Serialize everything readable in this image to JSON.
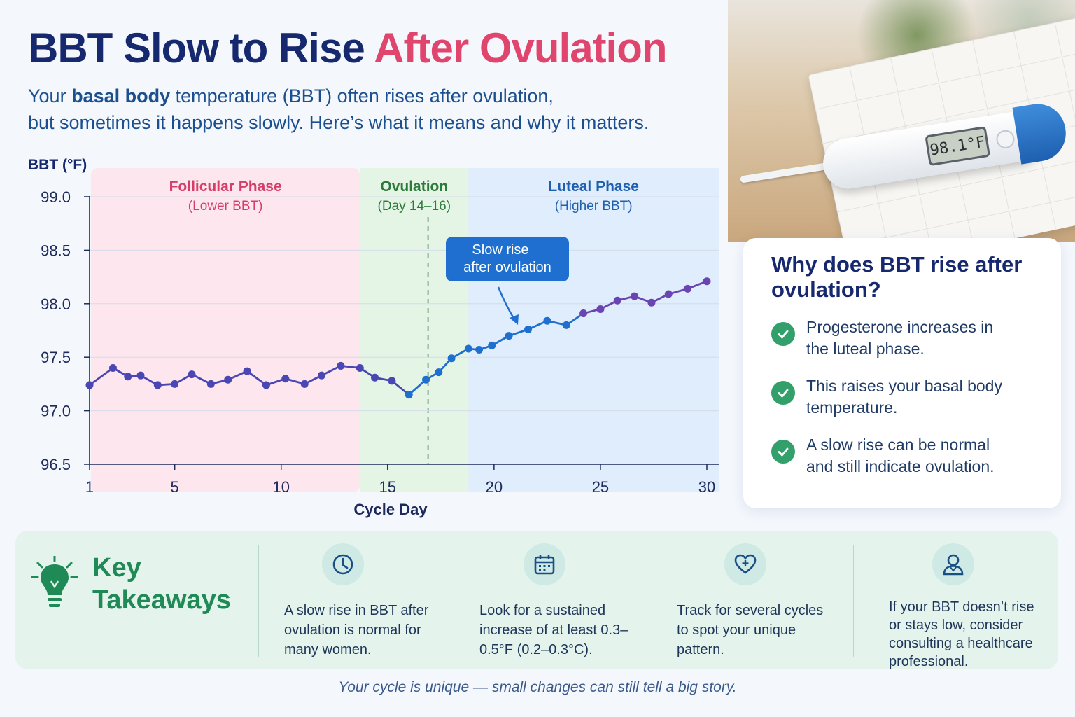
{
  "title": {
    "main": "BBT Slow to Rise",
    "accent": "After Ovulation"
  },
  "subtitle": {
    "part1": "Your ",
    "bold": "basal body",
    "part2": " temperature (BBT) often rises after ovulation,",
    "line2": "but sometimes it happens slowly. Here’s what it means and why it matters."
  },
  "thermometer": {
    "display": "98.1°F",
    "icon": "digital-thermometer"
  },
  "chart_data": {
    "type": "line",
    "ylabel": "BBT (°F)",
    "xlabel": "Cycle Day",
    "ylim": [
      96.5,
      99.0
    ],
    "xlim": [
      1,
      30
    ],
    "yticks": [
      "99.0",
      "98.5",
      "98.0",
      "97.5",
      "97.0",
      "96.5"
    ],
    "xticks": [
      "1",
      "5",
      "10",
      "15",
      "20",
      "25",
      "30"
    ],
    "grid": true,
    "phases": [
      {
        "name": "Follicular Phase",
        "sub": "(Lower BBT)",
        "from": 1,
        "to": 13.7,
        "fill": "#fde6ee",
        "color": "#d63e6a"
      },
      {
        "name": "Ovulation",
        "sub": "(Day 14–16)",
        "from": 13.7,
        "to": 18.8,
        "fill": "#e4f5e6",
        "color": "#2e7a3c"
      },
      {
        "name": "Luteal Phase",
        "sub": "(Higher BBT)",
        "from": 18.8,
        "to": 30.6,
        "fill": "#dfedfc",
        "color": "#1e5fb0"
      }
    ],
    "ovulation_day": 16.9,
    "annotation": {
      "line1": "Slow rise",
      "line2": "after ovulation"
    },
    "points": [
      [
        1,
        97.24
      ],
      [
        2.1,
        97.4
      ],
      [
        2.8,
        97.32
      ],
      [
        3.4,
        97.33
      ],
      [
        4.2,
        97.24
      ],
      [
        5,
        97.25
      ],
      [
        5.8,
        97.34
      ],
      [
        6.7,
        97.25
      ],
      [
        7.5,
        97.29
      ],
      [
        8.4,
        97.37
      ],
      [
        9.3,
        97.24
      ],
      [
        10.2,
        97.3
      ],
      [
        11.1,
        97.25
      ],
      [
        11.9,
        97.33
      ],
      [
        12.8,
        97.42
      ],
      [
        13.7,
        97.4
      ],
      [
        14.4,
        97.31
      ],
      [
        15.2,
        97.28
      ],
      [
        16.0,
        97.15
      ],
      [
        16.8,
        97.29
      ],
      [
        17.4,
        97.36
      ],
      [
        18.0,
        97.49
      ],
      [
        18.8,
        97.58
      ],
      [
        19.3,
        97.57
      ],
      [
        19.9,
        97.61
      ],
      [
        20.7,
        97.7
      ],
      [
        21.6,
        97.76
      ],
      [
        22.5,
        97.84
      ],
      [
        23.4,
        97.8
      ],
      [
        24.2,
        97.91
      ],
      [
        25.0,
        97.95
      ],
      [
        25.8,
        98.03
      ],
      [
        26.6,
        98.07
      ],
      [
        27.4,
        98.01
      ],
      [
        28.2,
        98.09
      ],
      [
        29.1,
        98.14
      ],
      [
        30.0,
        98.21
      ]
    ],
    "line_colors": {
      "before": "#4a46b3",
      "after": "#1e6fd0",
      "late": "#6a44b0"
    }
  },
  "why": {
    "title": "Why does BBT rise after ovulation?",
    "items": [
      "Progesterone increases in the luteal phase.",
      "This raises your basal body temperature.",
      "A slow rise can be normal and still indicate ovulation."
    ]
  },
  "takeaways": {
    "label": "Key Takeaways",
    "items": [
      {
        "icon": "clock-icon",
        "text": "A slow rise in BBT after ovulation is normal for many women."
      },
      {
        "icon": "calendar-icon",
        "text": "Look for a sustained increase of at least 0.3–0.5°F (0.2–0.3°C)."
      },
      {
        "icon": "heart-plus-icon",
        "text": "Track for several cycles to spot your unique pattern."
      },
      {
        "icon": "doctor-icon",
        "text": "If your BBT doesn’t rise or stays low, consider consulting a healthcare professional."
      }
    ]
  },
  "footer": "Your cycle is unique — small changes can still tell a big story.",
  "colors": {
    "navy": "#16286e",
    "pink": "#e0456e",
    "green": "#1f8a56",
    "blue": "#1e6fd0"
  }
}
